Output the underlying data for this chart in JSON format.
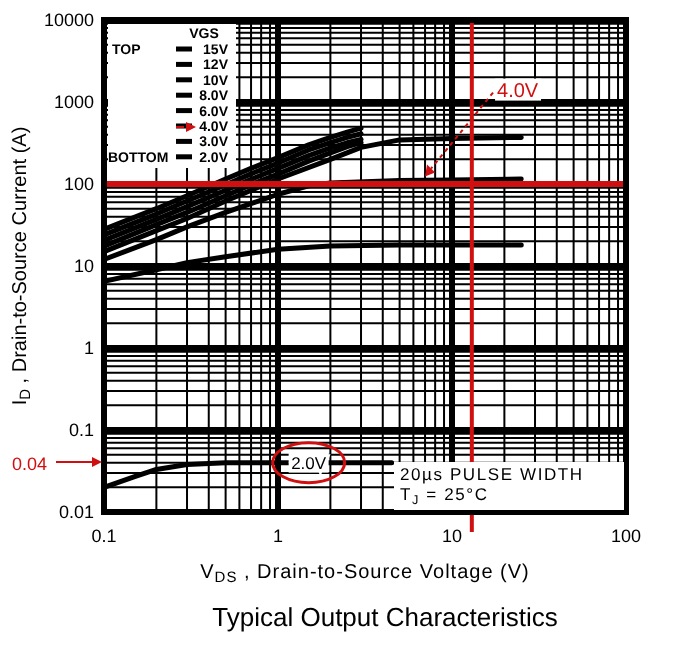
{
  "chart_data": {
    "type": "line",
    "title": "Typical Output Characteristics",
    "xlabel": "V$_{DS}$ , Drain-to-Source Voltage (V)",
    "ylabel": "I$_{D}$ , Drain-to-Source Current (A)",
    "legend_title": "VGS",
    "legend": "top left",
    "log": "xy",
    "grid": true,
    "line_style": "solid",
    "marker": "none",
    "xlim": [
      0.1,
      100
    ],
    "xticks": [
      0.1,
      1,
      10,
      100
    ],
    "ylim": [
      0.01,
      10000
    ],
    "yticks": [
      0.01,
      0.1,
      1,
      10,
      100,
      1000,
      10000
    ],
    "series": [
      {
        "name": "15V",
        "color": "#000000",
        "x": [
          0.1,
          0.2,
          0.3,
          0.5,
          0.7,
          1,
          1.5,
          2,
          2.5,
          3
        ],
        "values": [
          28,
          50,
          72,
          115,
          155,
          210,
          300,
          370,
          430,
          480
        ]
      },
      {
        "name": "12V",
        "color": "#000000",
        "x": [
          0.1,
          0.2,
          0.3,
          0.5,
          0.7,
          1,
          1.5,
          2,
          2.5,
          3
        ],
        "values": [
          24,
          43,
          62,
          98,
          133,
          180,
          260,
          320,
          370,
          410
        ]
      },
      {
        "name": "10V",
        "color": "#000000",
        "x": [
          0.1,
          0.2,
          0.3,
          0.5,
          0.7,
          1,
          1.5,
          2,
          2.5,
          3
        ],
        "values": [
          20.5,
          37,
          53,
          84,
          114,
          155,
          222,
          275,
          318,
          350
        ]
      },
      {
        "name": "8.0V",
        "color": "#000000",
        "x": [
          0.1,
          0.2,
          0.3,
          0.5,
          0.7,
          1,
          1.5,
          2,
          2.5,
          3
        ],
        "values": [
          17.5,
          32,
          45,
          72,
          98,
          132,
          190,
          240,
          285,
          320
        ]
      },
      {
        "name": "6.0V",
        "color": "#000000",
        "x": [
          0.1,
          0.2,
          0.3,
          0.5,
          1,
          2,
          3,
          5,
          10,
          25
        ],
        "values": [
          15,
          27,
          38,
          62,
          115,
          200,
          280,
          345,
          360,
          370
        ]
      },
      {
        "name": "4.0V",
        "color": "#000000",
        "x": [
          0.1,
          0.2,
          0.3,
          0.5,
          1,
          1.5,
          2,
          5,
          10,
          25
        ],
        "values": [
          12,
          21,
          30,
          45,
          75,
          95,
          103,
          110,
          112,
          115
        ]
      },
      {
        "name": "3.0V",
        "color": "#000000",
        "x": [
          0.1,
          0.2,
          0.3,
          0.5,
          1,
          2,
          5,
          25
        ],
        "values": [
          6.5,
          9,
          11,
          13,
          16,
          17.5,
          18,
          18
        ]
      },
      {
        "name": "2.0V",
        "color": "#000000",
        "x": [
          0.1,
          0.15,
          0.2,
          0.3,
          0.5,
          1,
          2,
          4.5
        ],
        "values": [
          0.02,
          0.027,
          0.033,
          0.038,
          0.04,
          0.04,
          0.04,
          0.04
        ]
      }
    ],
    "ref_lines": [
      {
        "axis": "y",
        "value": 100,
        "color": "#d01010"
      },
      {
        "axis": "x",
        "value": 13,
        "color": "#d01010"
      }
    ],
    "annotations": [
      "TOP",
      "BOTTOM",
      "20µs PULSE WIDTH",
      "T$_{J}$ = 25°C",
      "0.04",
      {
        "text": "2.0V",
        "x": 1.5,
        "y": 0.04
      },
      {
        "text": "4.0V",
        "x": 7,
        "y": 110
      }
    ]
  }
}
